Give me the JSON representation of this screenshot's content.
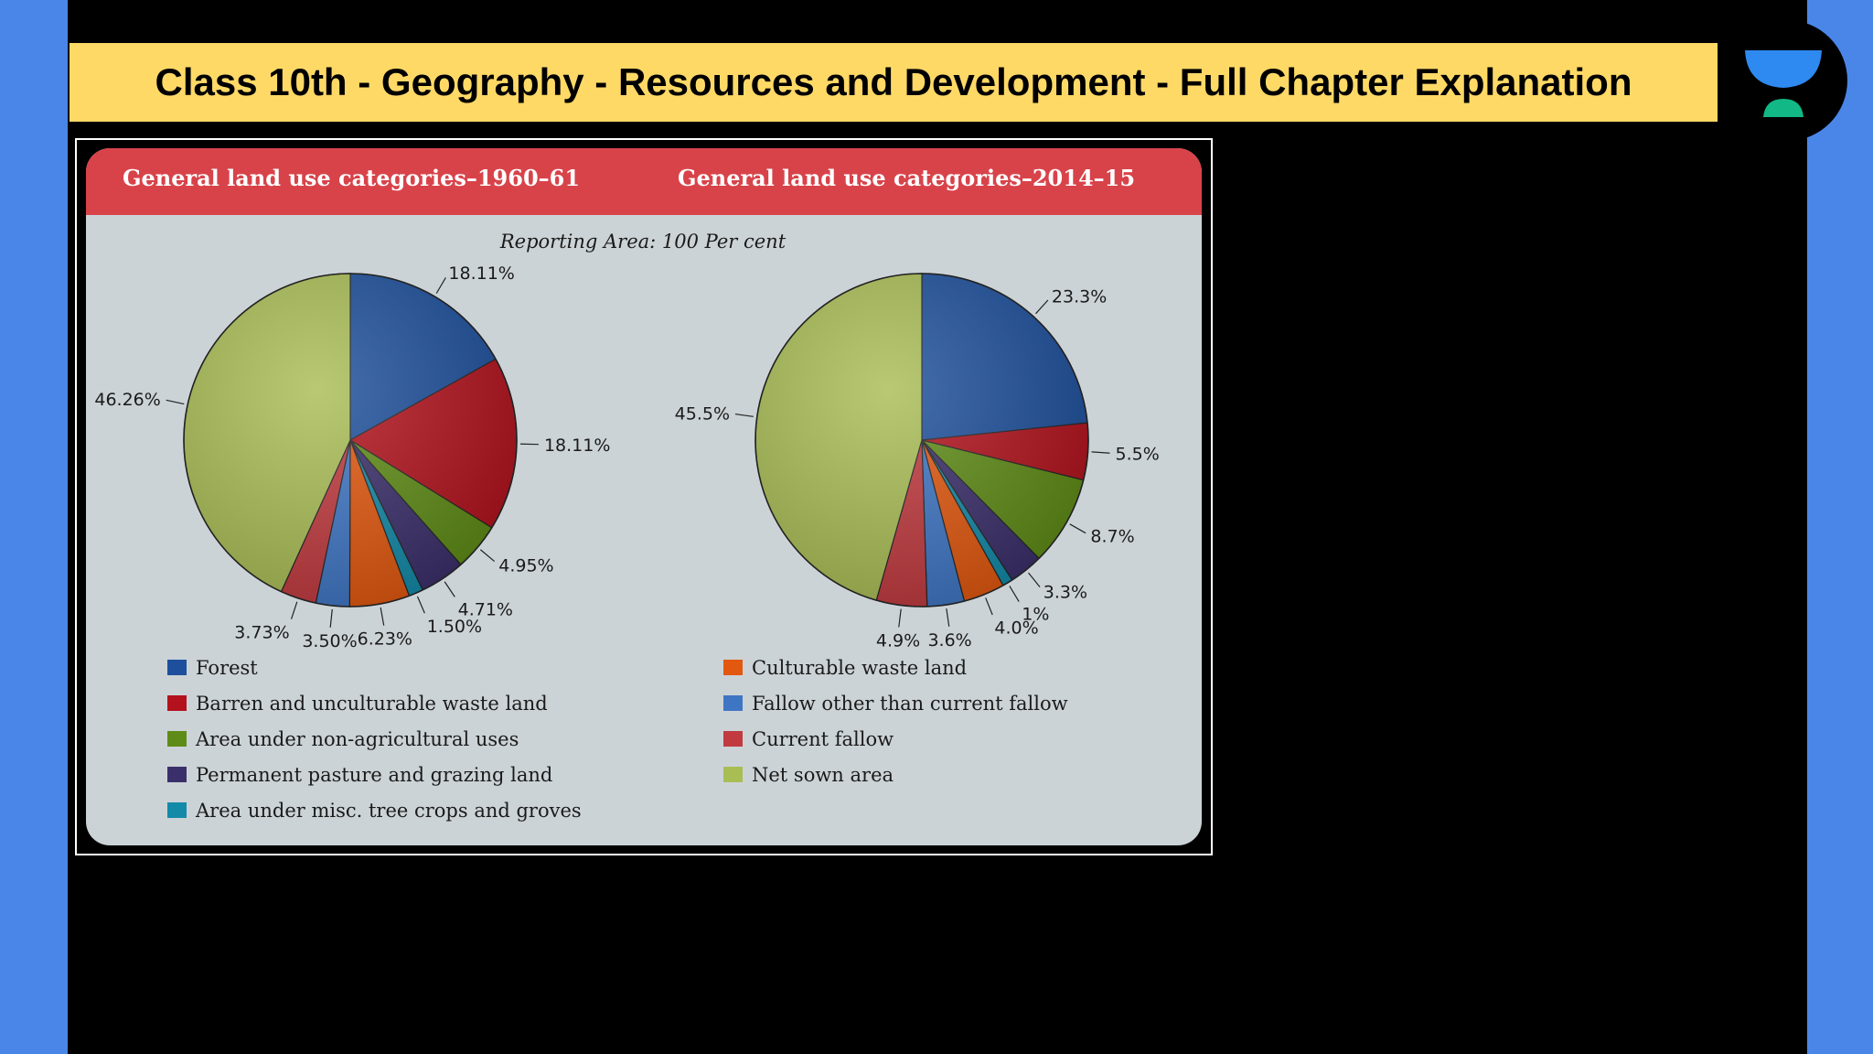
{
  "page": {
    "banner_title": "Class 10th - Geography - Resources and Development - Full Chapter Explanation",
    "logo_icon": "unacademy-logo-icon",
    "colors": {
      "banner": "#ffd966",
      "side": "#4a86e8",
      "header_band": "#d8434a",
      "panel": "#ccd3d7"
    }
  },
  "figure": {
    "header_left": "General land use categories–1960–61",
    "header_right": "General land use categories–2014–15",
    "subtitle": "Reporting Area: 100 Per cent"
  },
  "chart_data": [
    {
      "type": "pie",
      "title": "General land use categories–1960–61",
      "subtitle": "Reporting Area: 100 Per cent",
      "categories": [
        "Forest",
        "Barren and unculturable waste land",
        "Area under non-agricultural uses",
        "Permanent pasture and grazing land",
        "Area under misc. tree crops and groves",
        "Culturable waste land",
        "Fallow other than current fallow",
        "Current fallow",
        "Net sown area"
      ],
      "values": [
        18.11,
        18.11,
        4.95,
        4.71,
        1.5,
        6.23,
        3.5,
        3.73,
        46.26
      ],
      "labels": [
        "18.11%",
        "18.11%",
        "4.95%",
        "4.71%",
        "1.50%",
        "6.23%",
        "3.50%",
        "3.73%",
        "46.26%"
      ]
    },
    {
      "type": "pie",
      "title": "General land use categories–2014–15",
      "subtitle": "Reporting Area: 100 Per cent",
      "categories": [
        "Forest",
        "Barren and unculturable waste land",
        "Area under non-agricultural uses",
        "Permanent pasture and grazing land",
        "Area under misc. tree crops and groves",
        "Culturable waste land",
        "Fallow other than current fallow",
        "Current fallow",
        "Net sown area"
      ],
      "values": [
        23.3,
        5.5,
        8.7,
        3.3,
        1,
        4.0,
        3.6,
        4.9,
        45.5
      ],
      "labels": [
        "23.3%",
        "5.5%",
        "8.7%",
        "3.3%",
        "1%",
        "4.0%",
        "3.6%",
        "4.9%",
        "45.5%"
      ]
    }
  ],
  "legend": {
    "items": [
      {
        "label": "Forest",
        "color": "#1d4f9c"
      },
      {
        "label": "Barren and unculturable waste land",
        "color": "#b3121d"
      },
      {
        "label": "Area under non-agricultural uses",
        "color": "#5f8c16"
      },
      {
        "label": "Permanent pasture and grazing land",
        "color": "#3b2f6b"
      },
      {
        "label": "Area under misc. tree crops and groves",
        "color": "#138aa8"
      },
      {
        "label": "Culturable waste land",
        "color": "#e2580f"
      },
      {
        "label": "Fallow other than current fallow",
        "color": "#3f76c4"
      },
      {
        "label": "Current fallow",
        "color": "#c03a3f"
      },
      {
        "label": "Net sown area",
        "color": "#a9bd55"
      }
    ]
  }
}
